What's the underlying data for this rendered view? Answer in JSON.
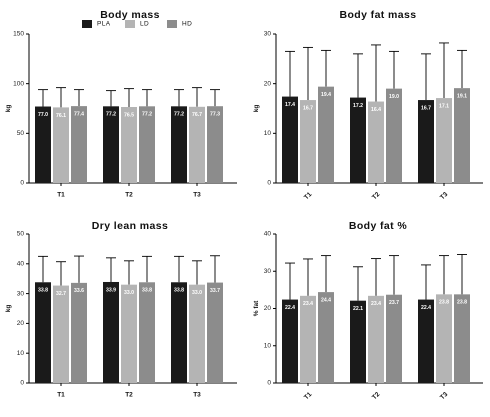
{
  "colors": {
    "PLA": "#1a1a1a",
    "LD": "#b4b4b4",
    "HD": "#8c8c8c",
    "axis": "#000000",
    "label_text": "#ffffff"
  },
  "legend": {
    "items": [
      "PLA",
      "LD",
      "HD"
    ],
    "placement": "top, inside body mass panel"
  },
  "chart_data": [
    {
      "type": "bar",
      "title": "Body mass",
      "xlabel": "",
      "ylabel": "kg",
      "ylim": [
        0,
        150
      ],
      "yticks": [
        0,
        50,
        100,
        150
      ],
      "categories": [
        "T1",
        "T2",
        "T3"
      ],
      "series": [
        {
          "name": "PLA",
          "values": [
            77.0,
            77.2,
            77.2
          ],
          "labels": [
            "77.0",
            "77.2",
            "77.2"
          ],
          "err": [
            94,
            93,
            94
          ]
        },
        {
          "name": "LD",
          "values": [
            76.1,
            76.5,
            76.7
          ],
          "labels": [
            "76.1",
            "76.5",
            "76.7"
          ],
          "err": [
            96,
            95,
            96
          ]
        },
        {
          "name": "HD",
          "values": [
            77.4,
            77.2,
            77.3
          ],
          "labels": [
            "77.4",
            "77.2",
            "77.3"
          ],
          "err": [
            94,
            94,
            94
          ]
        }
      ],
      "grid": false
    },
    {
      "type": "bar",
      "title": "Body fat mass",
      "xlabel": "",
      "ylabel": "kg",
      "ylim": [
        0,
        30
      ],
      "yticks": [
        0,
        10,
        20,
        30
      ],
      "categories": [
        "T1",
        "T2",
        "T3"
      ],
      "series": [
        {
          "name": "PLA",
          "values": [
            17.4,
            17.2,
            16.7
          ],
          "labels": [
            "17.4",
            "17.2",
            "16.7"
          ],
          "err": [
            26.5,
            26.0,
            26.0
          ]
        },
        {
          "name": "LD",
          "values": [
            16.7,
            16.4,
            17.1
          ],
          "labels": [
            "16.7",
            "16.4",
            "17.1"
          ],
          "err": [
            27.3,
            27.8,
            28.2
          ]
        },
        {
          "name": "HD",
          "values": [
            19.4,
            19.0,
            19.1
          ],
          "labels": [
            "19.4",
            "19.0",
            "19.1"
          ],
          "err": [
            26.7,
            26.5,
            26.7
          ]
        }
      ],
      "grid": false
    },
    {
      "type": "bar",
      "title": "Dry lean mass",
      "xlabel": "",
      "ylabel": "kg",
      "ylim": [
        0,
        50
      ],
      "yticks": [
        0,
        10,
        20,
        30,
        40,
        50
      ],
      "categories": [
        "T1",
        "T2",
        "T3"
      ],
      "series": [
        {
          "name": "PLA",
          "values": [
            33.8,
            33.9,
            33.8
          ],
          "labels": [
            "33.8",
            "33.9",
            "33.8"
          ],
          "err": [
            42.5,
            42.0,
            42.5
          ]
        },
        {
          "name": "LD",
          "values": [
            32.7,
            33.0,
            33.0
          ],
          "labels": [
            "32.7",
            "33.0",
            "33.0"
          ],
          "err": [
            40.7,
            41.0,
            41.0
          ]
        },
        {
          "name": "HD",
          "values": [
            33.6,
            33.8,
            33.7
          ],
          "labels": [
            "33.6",
            "33.8",
            "33.7"
          ],
          "err": [
            42.6,
            42.5,
            42.7
          ]
        }
      ],
      "grid": false
    },
    {
      "type": "bar",
      "title": "Body fat %",
      "xlabel": "",
      "ylabel": "% fat",
      "ylim": [
        0,
        40
      ],
      "yticks": [
        0,
        10,
        20,
        30,
        40
      ],
      "categories": [
        "T1",
        "T2",
        "T3"
      ],
      "series": [
        {
          "name": "PLA",
          "values": [
            22.4,
            22.1,
            22.4
          ],
          "labels": [
            "22.4",
            "22.1",
            "22.4"
          ],
          "err": [
            32.2,
            31.2,
            31.7
          ]
        },
        {
          "name": "LD",
          "values": [
            23.4,
            23.4,
            23.8
          ],
          "labels": [
            "23.4",
            "23.4",
            "23.8"
          ],
          "err": [
            33.3,
            33.4,
            34.2
          ]
        },
        {
          "name": "HD",
          "values": [
            24.4,
            23.7,
            23.8
          ],
          "labels": [
            "24.4",
            "23.7",
            "23.8"
          ],
          "err": [
            34.2,
            34.2,
            34.5
          ]
        }
      ],
      "grid": false
    }
  ]
}
